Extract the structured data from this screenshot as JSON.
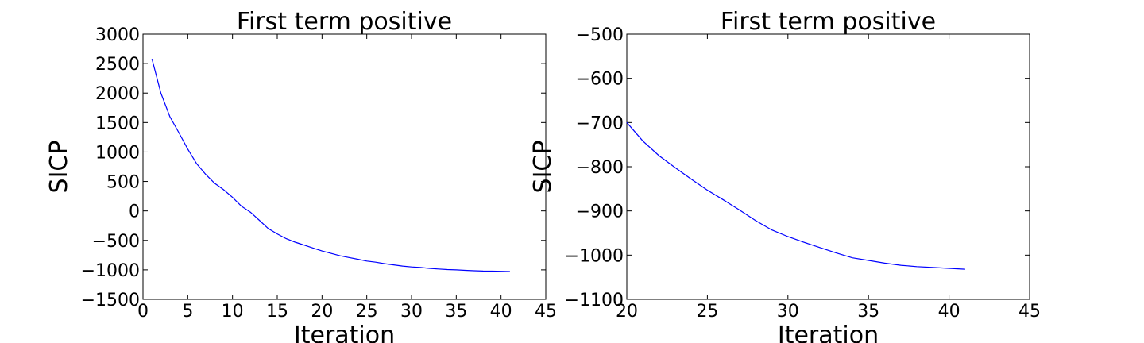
{
  "chart_data": [
    {
      "type": "line",
      "title": "First term positive",
      "xlabel": "Iteration",
      "ylabel": "SICP",
      "xlim": [
        0,
        45
      ],
      "ylim": [
        -1500,
        3000
      ],
      "xticks": [
        0,
        5,
        10,
        15,
        20,
        25,
        30,
        35,
        40,
        45
      ],
      "yticks": [
        -1500,
        -1000,
        -500,
        0,
        500,
        1000,
        1500,
        2000,
        2500,
        3000
      ],
      "grid": false,
      "series": [
        {
          "color": "#0000ff",
          "x": [
            1,
            2,
            3,
            4,
            5,
            6,
            7,
            8,
            9,
            10,
            11,
            12,
            13,
            14,
            15,
            16,
            17,
            18,
            19,
            20,
            21,
            22,
            23,
            24,
            25,
            26,
            27,
            28,
            29,
            30,
            31,
            32,
            33,
            34,
            35,
            36,
            37,
            38,
            39,
            40,
            41
          ],
          "y": [
            2580,
            2000,
            1600,
            1330,
            1050,
            800,
            620,
            470,
            360,
            230,
            80,
            -20,
            -160,
            -300,
            -390,
            -470,
            -530,
            -580,
            -630,
            -680,
            -720,
            -760,
            -790,
            -820,
            -850,
            -870,
            -895,
            -915,
            -935,
            -950,
            -960,
            -975,
            -985,
            -995,
            -1000,
            -1008,
            -1015,
            -1020,
            -1022,
            -1025,
            -1028
          ]
        }
      ]
    },
    {
      "type": "line",
      "title": "First term positive",
      "xlabel": "Iteration",
      "ylabel": "SICP",
      "xlim": [
        20,
        45
      ],
      "ylim": [
        -1100,
        -500
      ],
      "xticks": [
        20,
        25,
        30,
        35,
        40,
        45
      ],
      "yticks": [
        -1100,
        -1000,
        -900,
        -800,
        -700,
        -600,
        -500
      ],
      "grid": false,
      "series": [
        {
          "color": "#0000ff",
          "x": [
            20,
            21,
            22,
            23,
            24,
            25,
            26,
            27,
            28,
            29,
            30,
            31,
            32,
            33,
            34,
            35,
            36,
            37,
            38,
            39,
            40,
            41
          ],
          "y": [
            -700,
            -742,
            -775,
            -802,
            -828,
            -853,
            -875,
            -898,
            -922,
            -943,
            -958,
            -971,
            -983,
            -995,
            -1006,
            -1012,
            -1018,
            -1023,
            -1026,
            -1028,
            -1030,
            -1032
          ]
        }
      ]
    }
  ]
}
